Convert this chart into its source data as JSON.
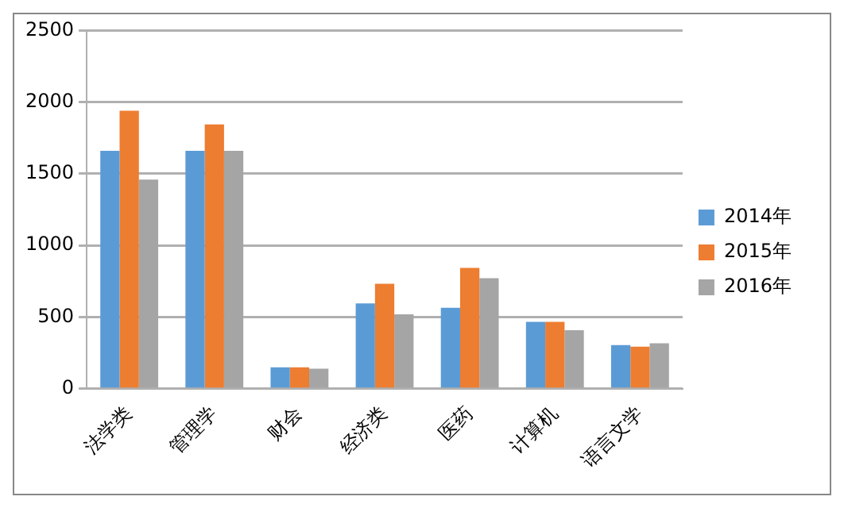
{
  "chart_data": {
    "type": "bar",
    "categories": [
      "法学类",
      "管理学",
      "财会",
      "经济类",
      "医药",
      "计算机",
      "语言文学"
    ],
    "series": [
      {
        "name": "2014年",
        "color": "#5b9bd5",
        "values": [
          1660,
          1660,
          150,
          595,
          565,
          466,
          305
        ]
      },
      {
        "name": "2015年",
        "color": "#ed7d31",
        "values": [
          1940,
          1845,
          150,
          733,
          844,
          466,
          294
        ]
      },
      {
        "name": "2016年",
        "color": "#a5a5a5",
        "values": [
          1460,
          1660,
          140,
          519,
          771,
          408,
          317
        ]
      }
    ],
    "ylim": [
      0,
      2500
    ],
    "yticks": [
      0,
      500,
      1000,
      1500,
      2000,
      2500
    ],
    "grid": "y",
    "legend": "right"
  }
}
